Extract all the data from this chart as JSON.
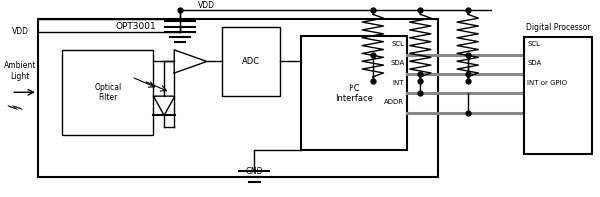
{
  "bg_color": "#ffffff",
  "line_color": "#000000",
  "gray_line_color": "#888888",
  "title_opt3001": "OPT3001",
  "title_opt_filter": "Optical\nFilter",
  "title_adc": "ADC",
  "title_i2c": "I²C\nInterface",
  "title_dp": "Digital Processor",
  "label_ambient": "Ambient\nLight",
  "label_vdd_top": "VDD",
  "label_vdd_left": "VDD",
  "label_gnd": "GND",
  "label_scl": "SCL",
  "label_sda": "SDA",
  "label_int": "INT",
  "label_addr": "ADDR",
  "label_scl_r": "SCL",
  "label_sda_r": "SDA",
  "label_int_r": "INT or GPIO"
}
